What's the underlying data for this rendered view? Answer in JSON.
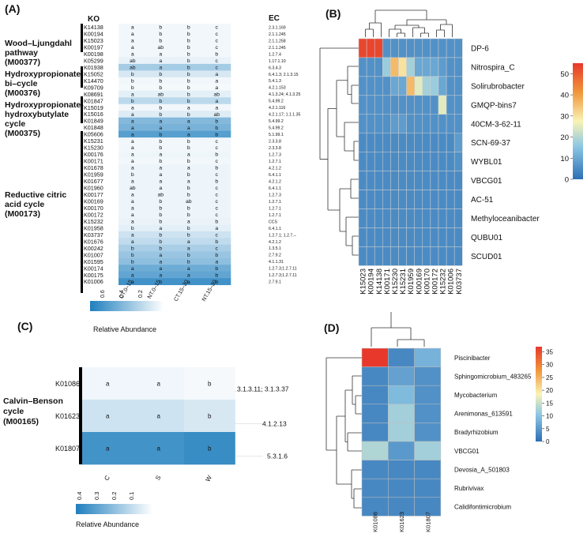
{
  "panels": {
    "a": "(A)",
    "b": "(B)",
    "c": "(C)",
    "d": "(D)"
  },
  "panel_a": {
    "ko_header": "KO",
    "ec_header": "EC",
    "pathways": [
      {
        "lines": [
          "Wood–Ljungdahl",
          "pathway",
          "(M00377)"
        ]
      },
      {
        "lines": [
          "Hydroxypropionate",
          "bi–cycle",
          "(M00376)"
        ]
      },
      {
        "lines": [
          "Hydroxypropionate-",
          "hydroxybutylate",
          "cycle",
          "(M00375)"
        ]
      },
      {
        "lines": [
          "Reductive citric",
          "acid cycle",
          " (M00173)"
        ]
      }
    ],
    "columns": [
      "CT.0–15",
      "NT.0–15",
      "CT.15–30",
      "NT.15–30"
    ],
    "legend_ticks": [
      "0.6",
      "0.4",
      "0.2"
    ],
    "legend_title": "Relative Abundance",
    "colors": {
      "low": "#ffffff",
      "high": "#1f7fbe"
    },
    "rows": [
      {
        "ko": "K14138",
        "letters": [
          "a",
          "b",
          "b",
          "c"
        ],
        "ec": "2.3.1.169",
        "v": [
          0.06,
          0.06,
          0.06,
          0.06
        ]
      },
      {
        "ko": "K00194",
        "letters": [
          "a",
          "b",
          "b",
          "c"
        ],
        "ec": "2.1.1.245",
        "v": [
          0.06,
          0.06,
          0.06,
          0.06
        ]
      },
      {
        "ko": "K15023",
        "letters": [
          "a",
          "b",
          "b",
          "c"
        ],
        "ec": "2.1.1.258",
        "v": [
          0.06,
          0.06,
          0.06,
          0.06
        ]
      },
      {
        "ko": "K00197",
        "letters": [
          "a",
          "ab",
          "b",
          "c"
        ],
        "ec": "2.1.1.245",
        "v": [
          0.06,
          0.06,
          0.06,
          0.06
        ]
      },
      {
        "ko": "K00198",
        "letters": [
          "a",
          "a",
          "b",
          "b"
        ],
        "ec": "1.2.7.4",
        "v": [
          0.06,
          0.06,
          0.06,
          0.06
        ]
      },
      {
        "ko": "K05299",
        "letters": [
          "ab",
          "a",
          "b",
          "c"
        ],
        "ec": "1.17.1.10",
        "v": [
          0.1,
          0.1,
          0.1,
          0.1
        ]
      },
      {
        "ko": "K01938",
        "letters": [
          "ab",
          "a",
          "b",
          "c"
        ],
        "ec": "6.3.4.3",
        "v": [
          0.4,
          0.4,
          0.4,
          0.4
        ]
      },
      {
        "ko": "K15052",
        "letters": [
          "b",
          "b",
          "b",
          "a"
        ],
        "ec": "6.4.1.3; 2.1.3.15",
        "v": [
          0.18,
          0.18,
          0.18,
          0.18
        ]
      },
      {
        "ko": "K14470",
        "letters": [
          "b",
          "b",
          "b",
          "a"
        ],
        "ec": "5.4.1.3",
        "v": [
          0.06,
          0.06,
          0.06,
          0.06
        ]
      },
      {
        "ko": "K09709",
        "letters": [
          "b",
          "b",
          "b",
          "a"
        ],
        "ec": "4.2.1.153",
        "v": [
          0.05,
          0.05,
          0.05,
          0.05
        ]
      },
      {
        "ko": "K08691",
        "letters": [
          "a",
          "ab",
          "b",
          "ab"
        ],
        "ec": "4.1.3.24; 4.1.3.25",
        "v": [
          0.12,
          0.12,
          0.12,
          0.12
        ]
      },
      {
        "ko": "K01847",
        "letters": [
          "b",
          "b",
          "b",
          "a"
        ],
        "ec": "5.4.99.2",
        "v": [
          0.3,
          0.3,
          0.3,
          0.3
        ]
      },
      {
        "ko": "K15019",
        "letters": [
          "a",
          "b",
          "a",
          "a"
        ],
        "ec": "4.2.1.116",
        "v": [
          0.06,
          0.06,
          0.06,
          0.06
        ]
      },
      {
        "ko": "K15016",
        "letters": [
          "a",
          "b",
          "b",
          "ab"
        ],
        "ec": "4.2.1.17; 1.1.1.35",
        "v": [
          0.15,
          0.15,
          0.15,
          0.15
        ]
      },
      {
        "ko": "K01849",
        "letters": [
          "a",
          "a",
          "a",
          "b"
        ],
        "ec": "5.4.99.2",
        "v": [
          0.55,
          0.55,
          0.55,
          0.55
        ]
      },
      {
        "ko": "K01848",
        "letters": [
          "a",
          "a",
          "a",
          "b"
        ],
        "ec": "5.4.99.2",
        "v": [
          0.6,
          0.6,
          0.6,
          0.6
        ]
      },
      {
        "ko": "K05606",
        "letters": [
          "a",
          "b",
          "a",
          "b"
        ],
        "ec": "5.1.99.1",
        "v": [
          0.75,
          0.75,
          0.75,
          0.75
        ]
      },
      {
        "ko": "K15231",
        "letters": [
          "a",
          "b",
          "b",
          "c"
        ],
        "ec": "2.3.3.8",
        "v": [
          0.06,
          0.06,
          0.06,
          0.06
        ]
      },
      {
        "ko": "K15230",
        "letters": [
          "a",
          "b",
          "b",
          "c"
        ],
        "ec": "2.3.3.8",
        "v": [
          0.06,
          0.06,
          0.06,
          0.06
        ]
      },
      {
        "ko": "K00176",
        "letters": [
          "a",
          "a",
          "a",
          "b"
        ],
        "ec": "1.2.7.3",
        "v": [
          0.07,
          0.07,
          0.07,
          0.07
        ]
      },
      {
        "ko": "K00171",
        "letters": [
          "a",
          "b",
          "b",
          "c"
        ],
        "ec": "1.2.7.1",
        "v": [
          0.06,
          0.06,
          0.06,
          0.06
        ]
      },
      {
        "ko": "K01678",
        "letters": [
          "a",
          "a",
          "a",
          "b"
        ],
        "ec": "4.2.1.2",
        "v": [
          0.08,
          0.08,
          0.08,
          0.08
        ]
      },
      {
        "ko": "K01959",
        "letters": [
          "b",
          "a",
          "b",
          "c"
        ],
        "ec": "6.4.1.1",
        "v": [
          0.08,
          0.08,
          0.08,
          0.08
        ]
      },
      {
        "ko": "K01677",
        "letters": [
          "a",
          "a",
          "a",
          "b"
        ],
        "ec": "4.2.1.2",
        "v": [
          0.08,
          0.08,
          0.08,
          0.08
        ]
      },
      {
        "ko": "K01960",
        "letters": [
          "ab",
          "a",
          "b",
          "c"
        ],
        "ec": "6.4.1.1",
        "v": [
          0.08,
          0.08,
          0.08,
          0.08
        ]
      },
      {
        "ko": "K00177",
        "letters": [
          "a",
          "ab",
          "b",
          "c"
        ],
        "ec": "1.2.7.3",
        "v": [
          0.08,
          0.08,
          0.08,
          0.08
        ]
      },
      {
        "ko": "K00169",
        "letters": [
          "a",
          "b",
          "ab",
          "c"
        ],
        "ec": "1.2.7.1",
        "v": [
          0.08,
          0.08,
          0.08,
          0.08
        ]
      },
      {
        "ko": "K00170",
        "letters": [
          "a",
          "b",
          "b",
          "c"
        ],
        "ec": "1.2.7.1",
        "v": [
          0.08,
          0.08,
          0.08,
          0.08
        ]
      },
      {
        "ko": "K00172",
        "letters": [
          "a",
          "b",
          "b",
          "c"
        ],
        "ec": "1.2.7.1",
        "v": [
          0.08,
          0.08,
          0.08,
          0.08
        ]
      },
      {
        "ko": "K15232",
        "letters": [
          "a",
          "b",
          "a",
          "b"
        ],
        "ec": "CCS",
        "v": [
          0.09,
          0.09,
          0.09,
          0.09
        ]
      },
      {
        "ko": "K01958",
        "letters": [
          "b",
          "a",
          "b",
          "a"
        ],
        "ec": "6.4.1.1",
        "v": [
          0.12,
          0.12,
          0.12,
          0.12
        ]
      },
      {
        "ko": "K03737",
        "letters": [
          "a",
          "b",
          "b",
          "c"
        ],
        "ec": "1.2.7.1; 1.2.7.–",
        "v": [
          0.22,
          0.22,
          0.22,
          0.22
        ]
      },
      {
        "ko": "K01676",
        "letters": [
          "a",
          "b",
          "a",
          "b"
        ],
        "ec": "4.2.1.2",
        "v": [
          0.28,
          0.28,
          0.28,
          0.28
        ]
      },
      {
        "ko": "K00242",
        "letters": [
          "b",
          "b",
          "a",
          "c"
        ],
        "ec": "1.3.5.1",
        "v": [
          0.38,
          0.38,
          0.38,
          0.38
        ]
      },
      {
        "ko": "K01007",
        "letters": [
          "b",
          "a",
          "b",
          "b"
        ],
        "ec": "2.7.9.2",
        "v": [
          0.45,
          0.45,
          0.45,
          0.45
        ]
      },
      {
        "ko": "K01595",
        "letters": [
          "b",
          "a",
          "b",
          "a"
        ],
        "ec": "4.1.1.31",
        "v": [
          0.5,
          0.5,
          0.5,
          0.5
        ]
      },
      {
        "ko": "K00174",
        "letters": [
          "a",
          "a",
          "a",
          "b"
        ],
        "ec": "1.2.7.3;1.2.7.11",
        "v": [
          0.65,
          0.65,
          0.65,
          0.65
        ]
      },
      {
        "ko": "K00175",
        "letters": [
          "a",
          "a",
          "a",
          "b"
        ],
        "ec": "1.2.7.3;1.2.7.11",
        "v": [
          0.7,
          0.7,
          0.7,
          0.7
        ]
      },
      {
        "ko": "K01006",
        "letters": [
          "a",
          "b",
          "a",
          "b"
        ],
        "ec": "2.7.9.1",
        "v": [
          0.85,
          0.85,
          0.85,
          0.85
        ]
      }
    ]
  },
  "chart_data": [
    {
      "type": "heatmap",
      "title": "(B)",
      "x": [
        "K15023",
        "K00194",
        "K14138",
        "K00171",
        "K15230",
        "K15231",
        "K01959",
        "K00169",
        "K00170",
        "K00172",
        "K15232",
        "K01006",
        "K03737"
      ],
      "y": [
        "DP-6",
        "Nitrospira_C",
        "Solirubrobacter",
        "GMQP-bins7",
        "40CM-3-62-11",
        "SCN-69-37",
        "WYBL01",
        "VBCG01",
        "AC-51",
        "Methyloceanibacter",
        "QUBU01",
        "SCUD01"
      ],
      "colorbar_ticks": [
        50,
        40,
        30,
        20,
        10,
        0
      ],
      "vmin": 0,
      "vmax": 55,
      "values": [
        [
          53,
          53,
          53,
          6,
          6,
          6,
          6,
          6,
          6,
          6,
          6,
          6,
          6
        ],
        [
          6,
          6,
          6,
          17,
          36,
          30,
          18,
          10,
          10,
          10,
          8,
          6,
          6
        ],
        [
          6,
          6,
          6,
          6,
          10,
          10,
          36,
          25,
          18,
          17,
          10,
          6,
          6
        ],
        [
          6,
          6,
          6,
          6,
          6,
          6,
          6,
          6,
          6,
          6,
          25,
          6,
          6
        ],
        [
          6,
          6,
          6,
          6,
          8,
          8,
          6,
          6,
          6,
          6,
          6,
          6,
          6
        ],
        [
          5,
          5,
          5,
          5,
          5,
          5,
          5,
          5,
          5,
          5,
          5,
          5,
          8
        ],
        [
          5,
          5,
          5,
          5,
          5,
          5,
          5,
          5,
          5,
          5,
          5,
          5,
          6
        ],
        [
          5,
          5,
          5,
          5,
          5,
          5,
          5,
          5,
          5,
          5,
          5,
          5,
          5
        ],
        [
          5,
          5,
          5,
          5,
          5,
          5,
          5,
          5,
          5,
          5,
          5,
          5,
          5
        ],
        [
          5,
          5,
          5,
          5,
          5,
          5,
          5,
          5,
          5,
          5,
          5,
          5,
          5
        ],
        [
          5,
          5,
          5,
          5,
          5,
          5,
          5,
          5,
          5,
          5,
          5,
          5,
          5
        ],
        [
          5,
          5,
          5,
          5,
          5,
          5,
          5,
          5,
          5,
          5,
          5,
          5,
          5
        ]
      ]
    },
    {
      "type": "heatmap",
      "title": "(C)",
      "pathway_lines": [
        "Calvin–Benson",
        "cycle",
        "(M00165)"
      ],
      "x": [
        "C",
        "S",
        "W"
      ],
      "y": [
        "K01086",
        "K01623",
        "K01807"
      ],
      "ec": [
        "3.1.3.11; 3.1.3.37",
        "4.1.2.13",
        "5.3.1.6"
      ],
      "letters": [
        [
          "a",
          "a",
          "b"
        ],
        [
          "a",
          "a",
          "b"
        ],
        [
          "a",
          "a",
          "b"
        ]
      ],
      "values": [
        [
          0.03,
          0.03,
          0.02
        ],
        [
          0.1,
          0.1,
          0.08
        ],
        [
          0.38,
          0.38,
          0.4
        ]
      ],
      "vmin": 0,
      "vmax": 0.45,
      "colorbar_ticks": [
        "0.4",
        "0.3",
        "0.2",
        "0.1"
      ],
      "legend_title": "Relative Abundance"
    },
    {
      "type": "heatmap",
      "title": "(D)",
      "x": [
        "K01086",
        "K01623",
        "K01807"
      ],
      "y": [
        "Piscinibacter",
        "Sphingomicrobium_483265",
        "Mycobacterium",
        "Arenimonas_613591",
        "Bradyrhizobium",
        "VBCG01",
        "Devosia_A_501803",
        "Rubrivivax",
        "Calidifontimicrobium"
      ],
      "colorbar_ticks": [
        35,
        30,
        25,
        20,
        15,
        10,
        5,
        0
      ],
      "vmin": 0,
      "vmax": 37,
      "values": [
        [
          37,
          3,
          8
        ],
        [
          3,
          6,
          4
        ],
        [
          3,
          9,
          4
        ],
        [
          3,
          12,
          4
        ],
        [
          3,
          12,
          4
        ],
        [
          13,
          5,
          12
        ],
        [
          3,
          3,
          3
        ],
        [
          3,
          3,
          3
        ],
        [
          3,
          3,
          3
        ]
      ]
    }
  ]
}
